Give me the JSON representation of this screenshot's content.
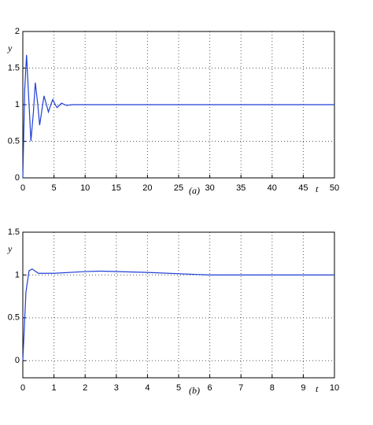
{
  "chart_data": [
    {
      "type": "line",
      "caption": "(a)",
      "xlabel": "t",
      "ylabel": "y",
      "color": "#1f3fd6",
      "grid": true,
      "x": [
        0,
        0.3,
        0.6,
        1.0,
        1.3,
        1.7,
        2.0,
        2.4,
        2.7,
        3.1,
        3.4,
        3.8,
        4.1,
        4.5,
        4.8,
        5.2,
        5.5,
        6.2,
        7,
        8,
        50
      ],
      "values": [
        0,
        1.2,
        1.68,
        1.0,
        0.5,
        0.9,
        1.3,
        1.0,
        0.72,
        0.95,
        1.12,
        1.0,
        0.9,
        1.0,
        1.07,
        1.0,
        0.96,
        1.02,
        0.99,
        1,
        1
      ],
      "xlim": [
        0,
        50
      ],
      "ylim": [
        0,
        2
      ],
      "xticks": [
        0,
        5,
        10,
        15,
        20,
        25,
        30,
        35,
        40,
        45,
        50
      ],
      "yticks": [
        0,
        0.5,
        1,
        1.5,
        2
      ]
    },
    {
      "type": "line",
      "caption": "(b)",
      "xlabel": "t",
      "ylabel": "y",
      "color": "#1f3fd6",
      "grid": true,
      "x": [
        0,
        0.1,
        0.2,
        0.3,
        0.5,
        1,
        2,
        2.5,
        4,
        6,
        8,
        10
      ],
      "values": [
        0,
        0.8,
        1.05,
        1.07,
        1.02,
        1.02,
        1.04,
        1.045,
        1.03,
        1.0,
        1.0,
        1.0
      ],
      "xlim": [
        0,
        10
      ],
      "ylim": [
        -0.2,
        1.5
      ],
      "xticks": [
        0,
        1,
        2,
        3,
        4,
        5,
        6,
        7,
        8,
        9,
        10
      ],
      "yticks": [
        0,
        0.5,
        1,
        1.5
      ]
    }
  ]
}
